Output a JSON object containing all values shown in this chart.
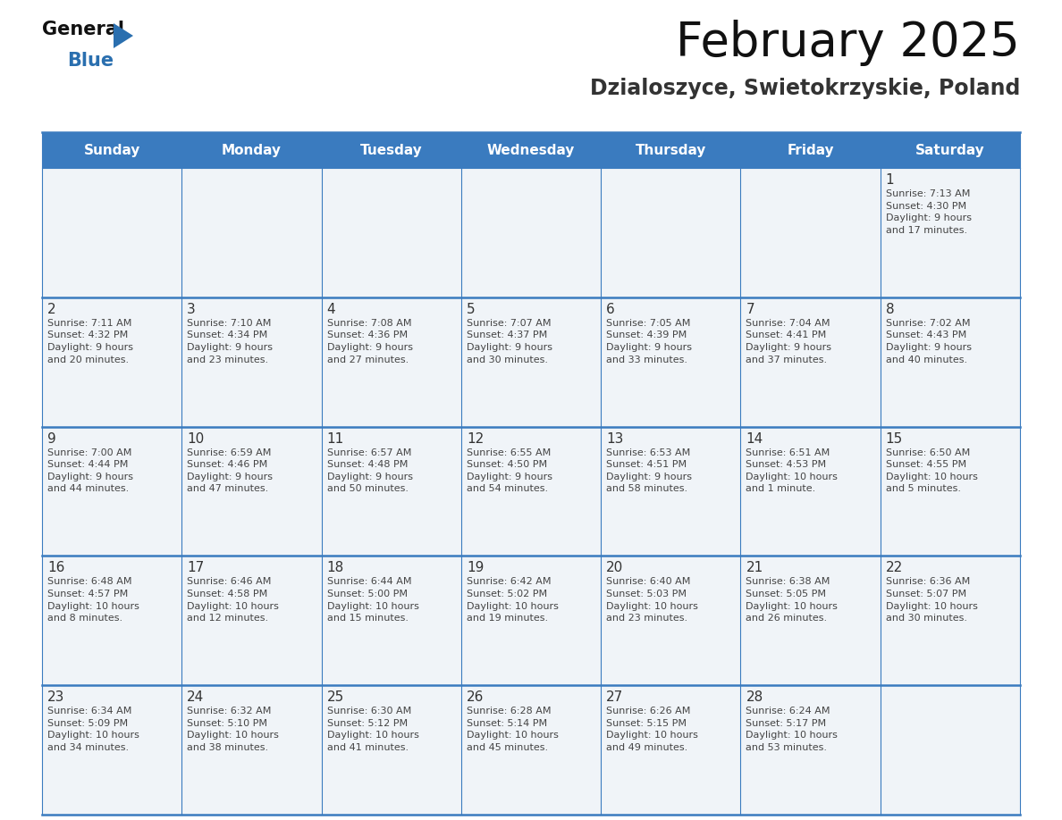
{
  "title": "February 2025",
  "subtitle": "Dzialoszyce, Swietokrzyskie, Poland",
  "days_of_week": [
    "Sunday",
    "Monday",
    "Tuesday",
    "Wednesday",
    "Thursday",
    "Friday",
    "Saturday"
  ],
  "header_bg": "#3a7bbf",
  "header_text": "#ffffff",
  "cell_bg": "#f0f4f8",
  "grid_line_color": "#3a7bbf",
  "day_number_color": "#333333",
  "cell_text_color": "#444444",
  "title_color": "#111111",
  "subtitle_color": "#333333",
  "logo_general_color": "#111111",
  "logo_blue_color": "#2a6faf",
  "weeks": [
    [
      {
        "day": null,
        "info": null
      },
      {
        "day": null,
        "info": null
      },
      {
        "day": null,
        "info": null
      },
      {
        "day": null,
        "info": null
      },
      {
        "day": null,
        "info": null
      },
      {
        "day": null,
        "info": null
      },
      {
        "day": 1,
        "info": "Sunrise: 7:13 AM\nSunset: 4:30 PM\nDaylight: 9 hours\nand 17 minutes."
      }
    ],
    [
      {
        "day": 2,
        "info": "Sunrise: 7:11 AM\nSunset: 4:32 PM\nDaylight: 9 hours\nand 20 minutes."
      },
      {
        "day": 3,
        "info": "Sunrise: 7:10 AM\nSunset: 4:34 PM\nDaylight: 9 hours\nand 23 minutes."
      },
      {
        "day": 4,
        "info": "Sunrise: 7:08 AM\nSunset: 4:36 PM\nDaylight: 9 hours\nand 27 minutes."
      },
      {
        "day": 5,
        "info": "Sunrise: 7:07 AM\nSunset: 4:37 PM\nDaylight: 9 hours\nand 30 minutes."
      },
      {
        "day": 6,
        "info": "Sunrise: 7:05 AM\nSunset: 4:39 PM\nDaylight: 9 hours\nand 33 minutes."
      },
      {
        "day": 7,
        "info": "Sunrise: 7:04 AM\nSunset: 4:41 PM\nDaylight: 9 hours\nand 37 minutes."
      },
      {
        "day": 8,
        "info": "Sunrise: 7:02 AM\nSunset: 4:43 PM\nDaylight: 9 hours\nand 40 minutes."
      }
    ],
    [
      {
        "day": 9,
        "info": "Sunrise: 7:00 AM\nSunset: 4:44 PM\nDaylight: 9 hours\nand 44 minutes."
      },
      {
        "day": 10,
        "info": "Sunrise: 6:59 AM\nSunset: 4:46 PM\nDaylight: 9 hours\nand 47 minutes."
      },
      {
        "day": 11,
        "info": "Sunrise: 6:57 AM\nSunset: 4:48 PM\nDaylight: 9 hours\nand 50 minutes."
      },
      {
        "day": 12,
        "info": "Sunrise: 6:55 AM\nSunset: 4:50 PM\nDaylight: 9 hours\nand 54 minutes."
      },
      {
        "day": 13,
        "info": "Sunrise: 6:53 AM\nSunset: 4:51 PM\nDaylight: 9 hours\nand 58 minutes."
      },
      {
        "day": 14,
        "info": "Sunrise: 6:51 AM\nSunset: 4:53 PM\nDaylight: 10 hours\nand 1 minute."
      },
      {
        "day": 15,
        "info": "Sunrise: 6:50 AM\nSunset: 4:55 PM\nDaylight: 10 hours\nand 5 minutes."
      }
    ],
    [
      {
        "day": 16,
        "info": "Sunrise: 6:48 AM\nSunset: 4:57 PM\nDaylight: 10 hours\nand 8 minutes."
      },
      {
        "day": 17,
        "info": "Sunrise: 6:46 AM\nSunset: 4:58 PM\nDaylight: 10 hours\nand 12 minutes."
      },
      {
        "day": 18,
        "info": "Sunrise: 6:44 AM\nSunset: 5:00 PM\nDaylight: 10 hours\nand 15 minutes."
      },
      {
        "day": 19,
        "info": "Sunrise: 6:42 AM\nSunset: 5:02 PM\nDaylight: 10 hours\nand 19 minutes."
      },
      {
        "day": 20,
        "info": "Sunrise: 6:40 AM\nSunset: 5:03 PM\nDaylight: 10 hours\nand 23 minutes."
      },
      {
        "day": 21,
        "info": "Sunrise: 6:38 AM\nSunset: 5:05 PM\nDaylight: 10 hours\nand 26 minutes."
      },
      {
        "day": 22,
        "info": "Sunrise: 6:36 AM\nSunset: 5:07 PM\nDaylight: 10 hours\nand 30 minutes."
      }
    ],
    [
      {
        "day": 23,
        "info": "Sunrise: 6:34 AM\nSunset: 5:09 PM\nDaylight: 10 hours\nand 34 minutes."
      },
      {
        "day": 24,
        "info": "Sunrise: 6:32 AM\nSunset: 5:10 PM\nDaylight: 10 hours\nand 38 minutes."
      },
      {
        "day": 25,
        "info": "Sunrise: 6:30 AM\nSunset: 5:12 PM\nDaylight: 10 hours\nand 41 minutes."
      },
      {
        "day": 26,
        "info": "Sunrise: 6:28 AM\nSunset: 5:14 PM\nDaylight: 10 hours\nand 45 minutes."
      },
      {
        "day": 27,
        "info": "Sunrise: 6:26 AM\nSunset: 5:15 PM\nDaylight: 10 hours\nand 49 minutes."
      },
      {
        "day": 28,
        "info": "Sunrise: 6:24 AM\nSunset: 5:17 PM\nDaylight: 10 hours\nand 53 minutes."
      },
      {
        "day": null,
        "info": null
      }
    ]
  ]
}
